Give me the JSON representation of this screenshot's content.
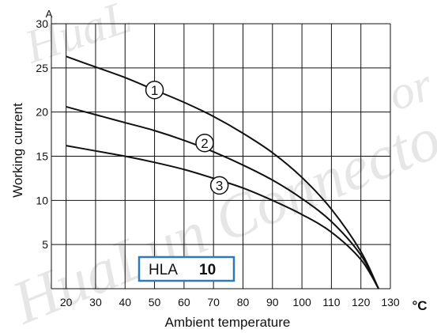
{
  "watermark": {
    "text_top_left": "HuaL",
    "text_main": "HuaLun Connector",
    "text_right": "or"
  },
  "chart_data": {
    "type": "line",
    "title": "",
    "xlabel": "Ambient temperature",
    "ylabel": "Working current",
    "x_unit": "°C",
    "y_unit": "A",
    "xlim": [
      15,
      130
    ],
    "ylim": [
      0,
      30
    ],
    "x_ticks": [
      20,
      30,
      40,
      50,
      60,
      70,
      80,
      90,
      100,
      110,
      120,
      130
    ],
    "y_ticks": [
      5,
      10,
      15,
      20,
      25,
      30
    ],
    "grid": true,
    "legend_box": {
      "prefix": "HLA",
      "value": "10",
      "placement": "bottom-left"
    },
    "series": [
      {
        "name": "1",
        "color": "#111111",
        "x": [
          20,
          30,
          40,
          50,
          60,
          70,
          80,
          90,
          100,
          110,
          120,
          126
        ],
        "y": [
          26.3,
          25.1,
          23.9,
          22.5,
          21.1,
          19.5,
          17.6,
          15.4,
          12.6,
          9.0,
          4.2,
          0
        ]
      },
      {
        "name": "2",
        "color": "#111111",
        "x": [
          20,
          30,
          40,
          50,
          60,
          70,
          80,
          90,
          100,
          110,
          120,
          126
        ],
        "y": [
          20.6,
          19.7,
          18.8,
          17.9,
          16.8,
          15.5,
          14.0,
          12.3,
          10.2,
          7.6,
          3.8,
          0
        ]
      },
      {
        "name": "3",
        "color": "#111111",
        "x": [
          20,
          30,
          40,
          50,
          60,
          70,
          80,
          90,
          100,
          110,
          120,
          126
        ],
        "y": [
          16.2,
          15.6,
          15.0,
          14.3,
          13.5,
          12.5,
          11.4,
          10.0,
          8.4,
          6.4,
          3.3,
          0
        ]
      }
    ],
    "curve_labels": [
      {
        "text": "1",
        "x": 50,
        "y": 22.5
      },
      {
        "text": "2",
        "x": 67,
        "y": 16.5
      },
      {
        "text": "3",
        "x": 72,
        "y": 11.7
      }
    ]
  }
}
